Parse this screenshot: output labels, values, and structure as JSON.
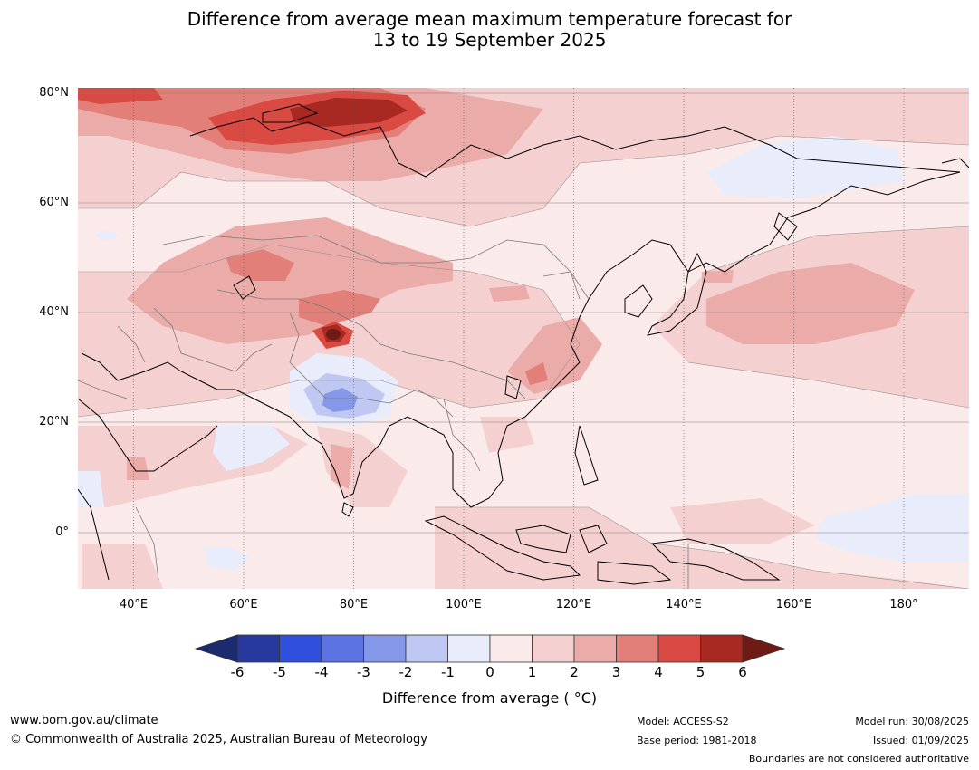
{
  "title_line1": "Difference from average mean maximum temperature forecast for",
  "title_line2": "13 to 19 September 2025",
  "map": {
    "lon_range": [
      30,
      190
    ],
    "lat_range": [
      -10,
      80
    ],
    "lat_labels": [
      "80°N",
      "60°N",
      "40°N",
      "20°N",
      "0°"
    ],
    "lon_labels": [
      "40°E",
      "60°E",
      "80°E",
      "100°E",
      "120°E",
      "140°E",
      "160°E",
      "180°"
    ],
    "grid": true,
    "features": [
      "coastlines",
      "country boundaries",
      "filled anomaly contours"
    ]
  },
  "colorbar": {
    "ticks": [
      "-6",
      "-5",
      "-4",
      "-3",
      "-2",
      "-1",
      "0",
      "1",
      "2",
      "3",
      "4",
      "5",
      "6"
    ],
    "colors": [
      "#27399f",
      "#2f4fdd",
      "#5b73e3",
      "#8597e9",
      "#bec8f3",
      "#e8ecfb",
      "#fbeaea",
      "#f4d1d0",
      "#ebaca9",
      "#e37f79",
      "#d84a42",
      "#a82922"
    ],
    "under_color": "#1c2a70",
    "over_color": "#6e1a15",
    "label": "Difference from average ( °C)"
  },
  "footer": {
    "website": "www.bom.gov.au/climate",
    "copyright": "© Commonwealth of Australia 2025, Australian Bureau of Meteorology",
    "model": "Model: ACCESS-S2",
    "base_period": "Base period: 1981-2018",
    "model_run": "Model run: 30/08/2025",
    "issued": "Issued: 01/09/2025",
    "disclaimer": "Boundaries are not considered authoritative"
  }
}
